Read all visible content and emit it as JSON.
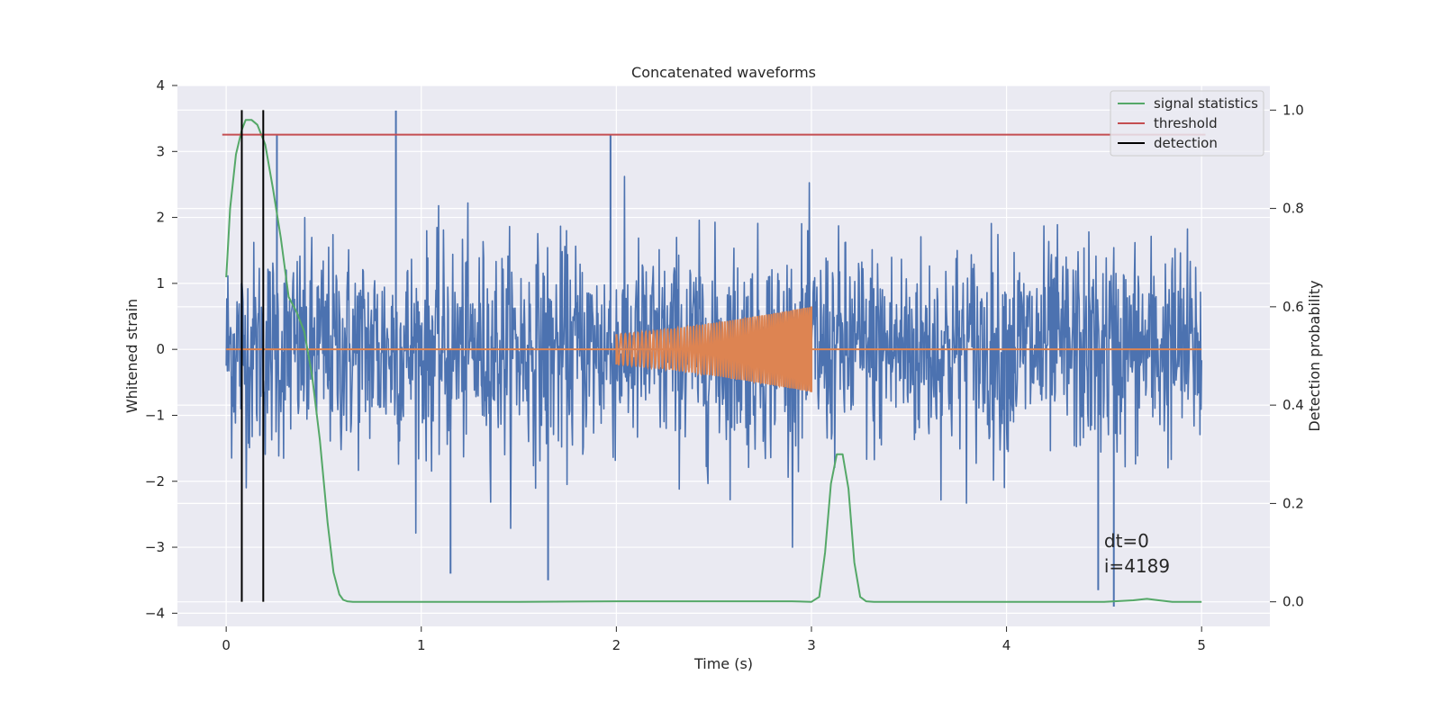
{
  "chart_data": {
    "type": "line",
    "title": "Concatenated waveforms",
    "xlabel": "Time (s)",
    "ylabel": "Whitened strain",
    "y2label": "Detection probability",
    "xlim": [
      -0.25,
      5.35
    ],
    "ylim": [
      -4.2,
      4.0
    ],
    "y2lim": [
      -0.05,
      1.05
    ],
    "xticks": [
      0,
      1,
      2,
      3,
      4,
      5
    ],
    "yticks": [
      -4,
      -3,
      -2,
      -1,
      0,
      1,
      2,
      3,
      4
    ],
    "y2ticks": [
      0.0,
      0.2,
      0.4,
      0.6,
      0.8,
      1.0
    ],
    "y2ticklabels": [
      "0.0",
      "0.2",
      "0.4",
      "0.6",
      "0.8",
      "1.0"
    ],
    "grid": true,
    "legend_position": "top-right",
    "background": "#eaeaf2",
    "series": [
      {
        "name": "",
        "axis": "left",
        "color": "#4c72b0",
        "kind": "noise",
        "x_range": [
          0,
          5
        ],
        "std": 0.8,
        "spikes": [
          [
            0.87,
            3.62
          ],
          [
            1.97,
            3.25
          ],
          [
            0.26,
            3.25
          ],
          [
            4.55,
            -3.9
          ],
          [
            4.47,
            -3.65
          ],
          [
            1.65,
            -3.5
          ],
          [
            1.15,
            -3.4
          ]
        ]
      },
      {
        "name": "",
        "axis": "left",
        "color": "#dd8452",
        "kind": "chirp",
        "baseline_x": [
          0,
          5
        ],
        "baseline_y": 0,
        "x_range": [
          2.0,
          3.0
        ],
        "amplitude_start": 0.23,
        "amplitude_end": 0.65,
        "cycles": 70
      },
      {
        "name": "signal statistics",
        "axis": "right",
        "color": "#55a868",
        "x": [
          0.0,
          0.02,
          0.05,
          0.08,
          0.1,
          0.13,
          0.16,
          0.2,
          0.24,
          0.28,
          0.32,
          0.36,
          0.4,
          0.44,
          0.48,
          0.52,
          0.55,
          0.58,
          0.6,
          0.62,
          0.65,
          0.8,
          1.0,
          1.5,
          2.0,
          2.5,
          2.9,
          3.0,
          3.04,
          3.07,
          3.1,
          3.13,
          3.16,
          3.19,
          3.22,
          3.25,
          3.28,
          3.32,
          3.5,
          4.0,
          4.5,
          4.65,
          4.72,
          4.78,
          4.85,
          5.0
        ],
        "y": [
          0.66,
          0.8,
          0.91,
          0.96,
          0.98,
          0.98,
          0.97,
          0.93,
          0.84,
          0.74,
          0.62,
          0.59,
          0.55,
          0.46,
          0.33,
          0.16,
          0.06,
          0.015,
          0.004,
          0.001,
          0.0,
          0.0,
          0.0,
          0.0,
          0.001,
          0.001,
          0.001,
          0.0,
          0.01,
          0.1,
          0.24,
          0.3,
          0.3,
          0.23,
          0.08,
          0.01,
          0.001,
          0.0,
          0.0,
          0.0,
          0.0,
          0.003,
          0.006,
          0.003,
          0.0,
          0.0
        ]
      },
      {
        "name": "threshold",
        "axis": "right",
        "color": "#c44e52",
        "x": [
          -0.02,
          5.02
        ],
        "y": [
          0.95,
          0.95
        ]
      },
      {
        "name": "detection",
        "axis": "right",
        "color": "#000000",
        "kind": "vlines",
        "x": [
          0.08,
          0.19
        ],
        "y": [
          0.0,
          1.0
        ]
      }
    ],
    "legend": [
      "signal statistics",
      "threshold",
      "detection"
    ],
    "annotations": [
      "dt=0",
      "i=4189"
    ],
    "annotation_anchor": [
      4.5,
      -3.0
    ]
  }
}
